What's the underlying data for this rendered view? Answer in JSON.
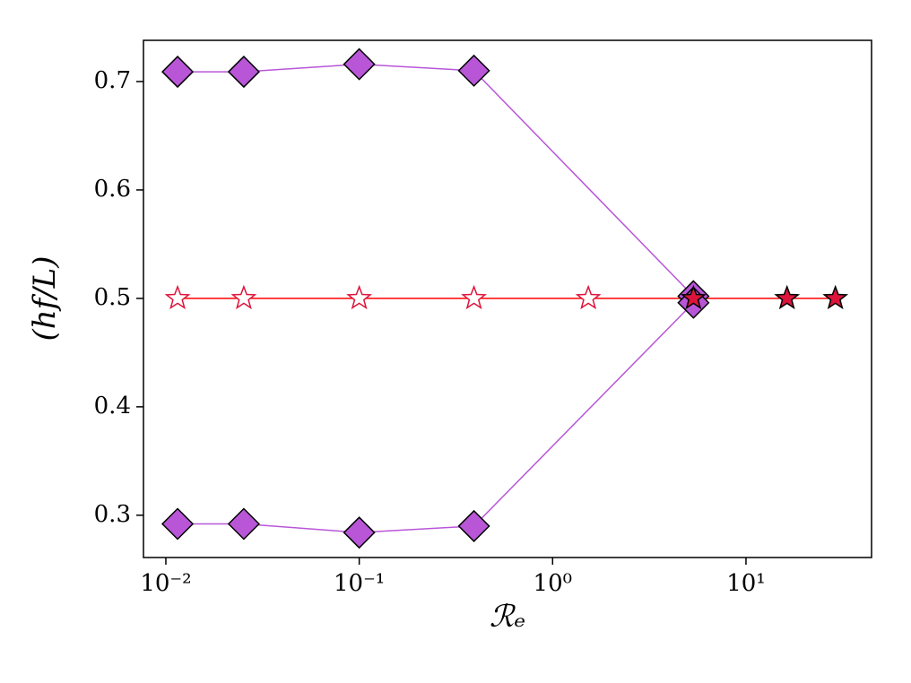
{
  "chart_data": {
    "type": "line",
    "x_label": "ℛₑ",
    "y_label": "(hf/L)",
    "xscale": "log",
    "xlim": [
      0.00766,
      44.6
    ],
    "ylim": [
      0.261,
      0.738
    ],
    "xticks": [
      {
        "value": 0.01,
        "label": "10⁻²"
      },
      {
        "value": 0.1,
        "label": "10⁻¹"
      },
      {
        "value": 1,
        "label": "10⁰"
      },
      {
        "value": 10,
        "label": "10¹"
      }
    ],
    "yticks": [
      0.3,
      0.4,
      0.5,
      0.6,
      0.7
    ],
    "series": [
      {
        "color": "#b856d7",
        "line_color": "#b856d7",
        "marker": "diamond",
        "x": [
          0.0115,
          0.0253,
          0.1,
          0.392,
          5.35
        ],
        "values": [
          0.709,
          0.709,
          0.716,
          0.71,
          0.502
        ]
      },
      {
        "color": "#b856d7",
        "line_color": "#b856d7",
        "marker": "diamond",
        "x": [
          0.0115,
          0.0253,
          0.1,
          0.392,
          5.35
        ],
        "values": [
          0.292,
          0.292,
          0.284,
          0.29,
          0.496
        ]
      },
      {
        "color": "#dc143c",
        "line_color": "#ff0000",
        "marker": "star",
        "x": [
          0.0115,
          0.0253,
          0.1,
          0.392,
          1.53,
          5.35,
          16.3,
          29.0
        ],
        "values": [
          0.5,
          0.5,
          0.5,
          0.5,
          0.5,
          0.5,
          0.5,
          0.5
        ],
        "marker_fill": [
          "#ffffff",
          "#ffffff",
          "#ffffff",
          "#ffffff",
          "#ffffff",
          "#dc143c",
          "#dc143c",
          "#dc143c"
        ]
      }
    ]
  }
}
